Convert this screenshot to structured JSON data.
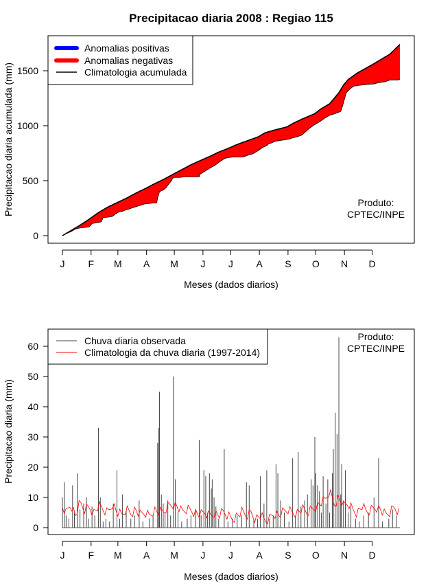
{
  "title": "Precipitacao diaria 2008 : Regiao 115",
  "chart_data": [
    {
      "type": "area",
      "ylabel": "Precipitacao diaria acumulada (mm)",
      "xlabel": "Meses (dados diarios)",
      "ylim": [
        0,
        1800
      ],
      "yticks": [
        0,
        500,
        1000,
        1500
      ],
      "xlim": [
        1,
        366
      ],
      "xticks": [
        {
          "day": 1,
          "label": "J"
        },
        {
          "day": 32,
          "label": "F"
        },
        {
          "day": 61,
          "label": "M"
        },
        {
          "day": 92,
          "label": "A"
        },
        {
          "day": 122,
          "label": "M"
        },
        {
          "day": 153,
          "label": "J"
        },
        {
          "day": 183,
          "label": "J"
        },
        {
          "day": 214,
          "label": "A"
        },
        {
          "day": 245,
          "label": "S"
        },
        {
          "day": 275,
          "label": "O"
        },
        {
          "day": 306,
          "label": "N"
        },
        {
          "day": 336,
          "label": "D"
        }
      ],
      "legend": [
        {
          "label": "Anomalias positivas",
          "color": "#0000ff",
          "style": "thick"
        },
        {
          "label": "Anomalias negativas",
          "color": "#ff0000",
          "style": "thick"
        },
        {
          "label": "Climatologia acumulada",
          "color": "#000000",
          "style": "line"
        }
      ],
      "note": [
        "Produto:",
        "CPTEC/INPE"
      ],
      "climatology": [
        [
          1,
          0
        ],
        [
          10,
          45
        ],
        [
          20,
          95
        ],
        [
          30,
          150
        ],
        [
          40,
          210
        ],
        [
          50,
          260
        ],
        [
          60,
          300
        ],
        [
          70,
          340
        ],
        [
          80,
          385
        ],
        [
          91,
          430
        ],
        [
          100,
          470
        ],
        [
          110,
          510
        ],
        [
          121,
          560
        ],
        [
          130,
          600
        ],
        [
          140,
          645
        ],
        [
          152,
          690
        ],
        [
          160,
          720
        ],
        [
          170,
          760
        ],
        [
          182,
          800
        ],
        [
          190,
          830
        ],
        [
          200,
          860
        ],
        [
          213,
          900
        ],
        [
          220,
          935
        ],
        [
          230,
          960
        ],
        [
          244,
          990
        ],
        [
          250,
          1020
        ],
        [
          260,
          1060
        ],
        [
          274,
          1110
        ],
        [
          280,
          1150
        ],
        [
          290,
          1200
        ],
        [
          295,
          1250
        ],
        [
          300,
          1300
        ],
        [
          305,
          1370
        ],
        [
          310,
          1420
        ],
        [
          320,
          1480
        ],
        [
          335,
          1550
        ],
        [
          345,
          1600
        ],
        [
          355,
          1650
        ],
        [
          366,
          1740
        ]
      ],
      "observed": [
        [
          1,
          0
        ],
        [
          6,
          22
        ],
        [
          10,
          35
        ],
        [
          15,
          60
        ],
        [
          20,
          70
        ],
        [
          25,
          75
        ],
        [
          30,
          80
        ],
        [
          33,
          110
        ],
        [
          38,
          118
        ],
        [
          43,
          125
        ],
        [
          45,
          165
        ],
        [
          50,
          168
        ],
        [
          55,
          175
        ],
        [
          58,
          195
        ],
        [
          62,
          215
        ],
        [
          66,
          222
        ],
        [
          70,
          235
        ],
        [
          75,
          248
        ],
        [
          80,
          262
        ],
        [
          85,
          275
        ],
        [
          90,
          288
        ],
        [
          98,
          296
        ],
        [
          103,
          300
        ],
        [
          104,
          340
        ],
        [
          106,
          400
        ],
        [
          110,
          415
        ],
        [
          113,
          435
        ],
        [
          116,
          470
        ],
        [
          119,
          500
        ],
        [
          120,
          520
        ],
        [
          122,
          530
        ],
        [
          128,
          530
        ],
        [
          133,
          535
        ],
        [
          138,
          535
        ],
        [
          145,
          535
        ],
        [
          149,
          535
        ],
        [
          150,
          560
        ],
        [
          155,
          585
        ],
        [
          160,
          612
        ],
        [
          166,
          640
        ],
        [
          170,
          665
        ],
        [
          176,
          700
        ],
        [
          180,
          710
        ],
        [
          186,
          715
        ],
        [
          190,
          715
        ],
        [
          196,
          715
        ],
        [
          201,
          730
        ],
        [
          207,
          745
        ],
        [
          213,
          775
        ],
        [
          217,
          800
        ],
        [
          222,
          818
        ],
        [
          224,
          835
        ],
        [
          226,
          840
        ],
        [
          232,
          860
        ],
        [
          240,
          870
        ],
        [
          246,
          878
        ],
        [
          250,
          890
        ],
        [
          255,
          900
        ],
        [
          260,
          915
        ],
        [
          264,
          945
        ],
        [
          268,
          975
        ],
        [
          272,
          1000
        ],
        [
          276,
          1020
        ],
        [
          280,
          1040
        ],
        [
          285,
          1070
        ],
        [
          290,
          1095
        ],
        [
          296,
          1110
        ],
        [
          302,
          1130
        ],
        [
          304,
          1180
        ],
        [
          306,
          1240
        ],
        [
          308,
          1300
        ],
        [
          312,
          1335
        ],
        [
          316,
          1360
        ],
        [
          322,
          1368
        ],
        [
          330,
          1375
        ],
        [
          338,
          1380
        ],
        [
          342,
          1390
        ],
        [
          350,
          1400
        ],
        [
          355,
          1415
        ],
        [
          360,
          1415
        ],
        [
          363,
          1415
        ],
        [
          366,
          1420
        ]
      ]
    },
    {
      "type": "bar",
      "ylabel": "Precipitacao diaria (mm)",
      "xlabel": "Meses (dados diarios)",
      "ylim": [
        -2,
        65
      ],
      "yticks": [
        0,
        10,
        20,
        30,
        40,
        50,
        60
      ],
      "xlim": [
        1,
        366
      ],
      "xticks": [
        {
          "day": 1,
          "label": "J"
        },
        {
          "day": 32,
          "label": "F"
        },
        {
          "day": 61,
          "label": "M"
        },
        {
          "day": 92,
          "label": "A"
        },
        {
          "day": 122,
          "label": "M"
        },
        {
          "day": 153,
          "label": "J"
        },
        {
          "day": 183,
          "label": "J"
        },
        {
          "day": 214,
          "label": "A"
        },
        {
          "day": 245,
          "label": "S"
        },
        {
          "day": 275,
          "label": "O"
        },
        {
          "day": 306,
          "label": "N"
        },
        {
          "day": 336,
          "label": "D"
        }
      ],
      "legend": [
        {
          "label": "Chuva diaria observada",
          "color": "#444444",
          "style": "line"
        },
        {
          "label": "Climatologia da chuva diaria (1997-2014)",
          "color": "#ff0000",
          "style": "line"
        }
      ],
      "note": [
        "Produto:",
        "CPTEC/INPE"
      ],
      "rain": [
        [
          1,
          10
        ],
        [
          3,
          15
        ],
        [
          5,
          4
        ],
        [
          8,
          3
        ],
        [
          12,
          14
        ],
        [
          14,
          5
        ],
        [
          17,
          18
        ],
        [
          20,
          6
        ],
        [
          24,
          8
        ],
        [
          27,
          10
        ],
        [
          29,
          3
        ],
        [
          33,
          7
        ],
        [
          36,
          4
        ],
        [
          40,
          33
        ],
        [
          42,
          10
        ],
        [
          45,
          2
        ],
        [
          48,
          3
        ],
        [
          52,
          2
        ],
        [
          56,
          8
        ],
        [
          60,
          19
        ],
        [
          63,
          3
        ],
        [
          66,
          11
        ],
        [
          70,
          6
        ],
        [
          75,
          3
        ],
        [
          79,
          4
        ],
        [
          84,
          9
        ],
        [
          88,
          2
        ],
        [
          95,
          3
        ],
        [
          99,
          4
        ],
        [
          104,
          28
        ],
        [
          105,
          33
        ],
        [
          106,
          45
        ],
        [
          108,
          11
        ],
        [
          110,
          8
        ],
        [
          112,
          5
        ],
        [
          115,
          9
        ],
        [
          118,
          4
        ],
        [
          121,
          50
        ],
        [
          123,
          16
        ],
        [
          126,
          5
        ],
        [
          130,
          2
        ],
        [
          136,
          3
        ],
        [
          140,
          4
        ],
        [
          145,
          6
        ],
        [
          149,
          29
        ],
        [
          151,
          4
        ],
        [
          154,
          19
        ],
        [
          156,
          17
        ],
        [
          158,
          5
        ],
        [
          160,
          18
        ],
        [
          162,
          13
        ],
        [
          163,
          16
        ],
        [
          165,
          10
        ],
        [
          167,
          7
        ],
        [
          170,
          3
        ],
        [
          176,
          26
        ],
        [
          180,
          2
        ],
        [
          185,
          3
        ],
        [
          190,
          4
        ],
        [
          195,
          4
        ],
        [
          200,
          15
        ],
        [
          203,
          14
        ],
        [
          208,
          3
        ],
        [
          212,
          3
        ],
        [
          215,
          17
        ],
        [
          219,
          8
        ],
        [
          222,
          19
        ],
        [
          225,
          3
        ],
        [
          229,
          4
        ],
        [
          232,
          21
        ],
        [
          234,
          18
        ],
        [
          237,
          9
        ],
        [
          241,
          5
        ],
        [
          246,
          2
        ],
        [
          250,
          23
        ],
        [
          253,
          4
        ],
        [
          256,
          25
        ],
        [
          259,
          7
        ],
        [
          263,
          9
        ],
        [
          266,
          11
        ],
        [
          270,
          16
        ],
        [
          272,
          14
        ],
        [
          274,
          30
        ],
        [
          275,
          18
        ],
        [
          277,
          14
        ],
        [
          279,
          12
        ],
        [
          281,
          5
        ],
        [
          283,
          17
        ],
        [
          286,
          8
        ],
        [
          288,
          16
        ],
        [
          290,
          5
        ],
        [
          293,
          18
        ],
        [
          294,
          26
        ],
        [
          296,
          38
        ],
        [
          298,
          31
        ],
        [
          300,
          63
        ],
        [
          302,
          11
        ],
        [
          303,
          21
        ],
        [
          305,
          9
        ],
        [
          307,
          19
        ],
        [
          310,
          5
        ],
        [
          313,
          7
        ],
        [
          318,
          3
        ],
        [
          322,
          2
        ],
        [
          327,
          4
        ],
        [
          332,
          5
        ],
        [
          338,
          10
        ],
        [
          343,
          23
        ],
        [
          347,
          2
        ],
        [
          354,
          3
        ],
        [
          358,
          6
        ],
        [
          362,
          4
        ]
      ],
      "clim_daily": [
        [
          1,
          7
        ],
        [
          5,
          5
        ],
        [
          10,
          8
        ],
        [
          15,
          4
        ],
        [
          20,
          8
        ],
        [
          25,
          6
        ],
        [
          30,
          7
        ],
        [
          35,
          5
        ],
        [
          40,
          7
        ],
        [
          45,
          6
        ],
        [
          50,
          5
        ],
        [
          55,
          8
        ],
        [
          60,
          5
        ],
        [
          65,
          4
        ],
        [
          70,
          6
        ],
        [
          75,
          5
        ],
        [
          80,
          6
        ],
        [
          85,
          4
        ],
        [
          90,
          5
        ],
        [
          95,
          4
        ],
        [
          100,
          6
        ],
        [
          105,
          5
        ],
        [
          110,
          5
        ],
        [
          115,
          7
        ],
        [
          120,
          8
        ],
        [
          125,
          7
        ],
        [
          130,
          5
        ],
        [
          135,
          6
        ],
        [
          140,
          6
        ],
        [
          145,
          5
        ],
        [
          150,
          4
        ],
        [
          155,
          5
        ],
        [
          160,
          4
        ],
        [
          165,
          5
        ],
        [
          170,
          4
        ],
        [
          175,
          5
        ],
        [
          180,
          4
        ],
        [
          185,
          3
        ],
        [
          190,
          4
        ],
        [
          195,
          5
        ],
        [
          200,
          4
        ],
        [
          205,
          5
        ],
        [
          210,
          3
        ],
        [
          215,
          4
        ],
        [
          220,
          2
        ],
        [
          225,
          3
        ],
        [
          230,
          5
        ],
        [
          235,
          4
        ],
        [
          240,
          5
        ],
        [
          245,
          6
        ],
        [
          250,
          5
        ],
        [
          255,
          5
        ],
        [
          260,
          6
        ],
        [
          265,
          5
        ],
        [
          270,
          6
        ],
        [
          275,
          7
        ],
        [
          280,
          8
        ],
        [
          285,
          9
        ],
        [
          290,
          12
        ],
        [
          295,
          8
        ],
        [
          300,
          10
        ],
        [
          305,
          7
        ],
        [
          310,
          8
        ],
        [
          315,
          6
        ],
        [
          320,
          5
        ],
        [
          325,
          7
        ],
        [
          330,
          5
        ],
        [
          335,
          6
        ],
        [
          340,
          7
        ],
        [
          345,
          6
        ],
        [
          350,
          4
        ],
        [
          355,
          5
        ],
        [
          360,
          7
        ],
        [
          366,
          5
        ]
      ]
    }
  ]
}
